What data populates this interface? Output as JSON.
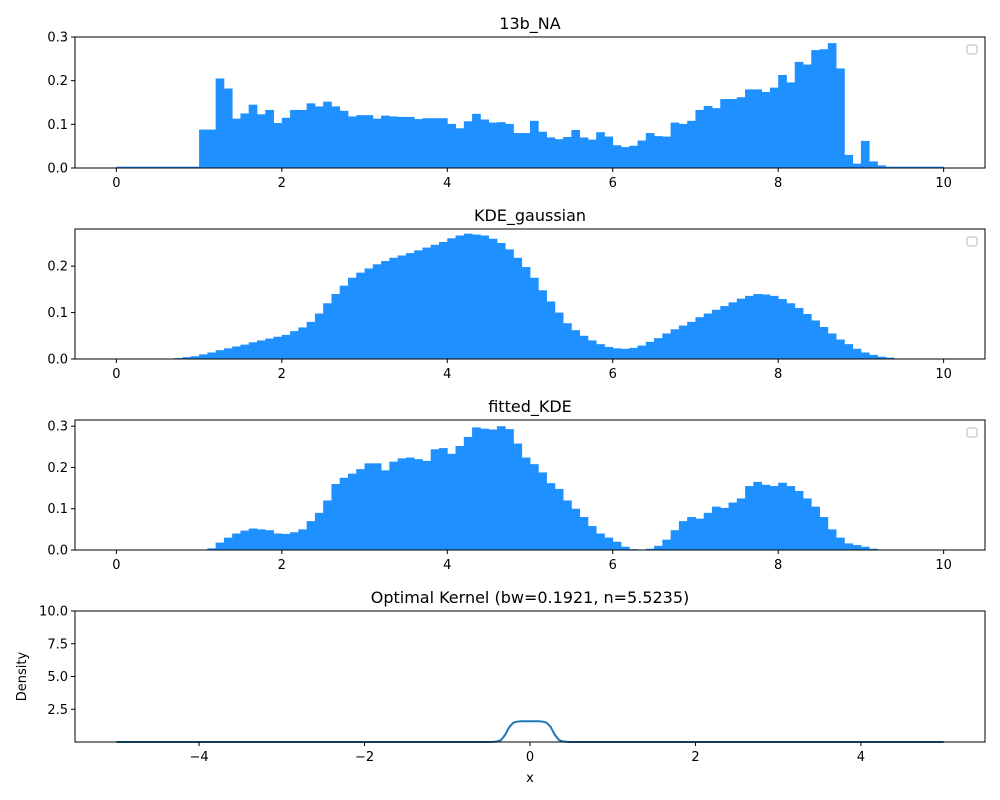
{
  "colors": {
    "bar": "#1e90ff",
    "line": "#1f77b4",
    "axis": "#000000"
  },
  "chart_data": [
    {
      "type": "bar",
      "title": "13b_NA",
      "xlim": [
        -0.5,
        10.5
      ],
      "ylim": [
        0,
        0.3
      ],
      "xticks": [
        "0",
        "2",
        "4",
        "6",
        "8",
        "10"
      ],
      "yticks": [
        "0.0",
        "0.1",
        "0.2",
        "0.3"
      ],
      "bin_start": 0,
      "bin_width": 0.1,
      "legend": "top-right, empty",
      "values": [
        0.003,
        0.003,
        0.003,
        0.003,
        0.003,
        0.003,
        0.003,
        0.003,
        0.003,
        0.003,
        0.088,
        0.088,
        0.205,
        0.182,
        0.113,
        0.125,
        0.145,
        0.123,
        0.133,
        0.103,
        0.115,
        0.133,
        0.133,
        0.148,
        0.141,
        0.152,
        0.141,
        0.131,
        0.118,
        0.121,
        0.121,
        0.113,
        0.12,
        0.118,
        0.117,
        0.117,
        0.112,
        0.114,
        0.114,
        0.114,
        0.101,
        0.091,
        0.107,
        0.124,
        0.111,
        0.104,
        0.105,
        0.101,
        0.08,
        0.08,
        0.108,
        0.083,
        0.07,
        0.066,
        0.071,
        0.087,
        0.07,
        0.065,
        0.082,
        0.072,
        0.052,
        0.048,
        0.051,
        0.063,
        0.08,
        0.073,
        0.072,
        0.104,
        0.101,
        0.108,
        0.133,
        0.142,
        0.137,
        0.158,
        0.158,
        0.162,
        0.18,
        0.18,
        0.174,
        0.184,
        0.213,
        0.196,
        0.243,
        0.237,
        0.27,
        0.272,
        0.286,
        0.228,
        0.03,
        0.01,
        0.062,
        0.015,
        0.006,
        0.003,
        0.003,
        0.003,
        0.003,
        0.003,
        0.003,
        0.003
      ]
    },
    {
      "type": "bar",
      "title": "KDE_gaussian",
      "xlim": [
        -0.5,
        10.5
      ],
      "ylim": [
        0,
        0.28
      ],
      "xticks": [
        "0",
        "2",
        "4",
        "6",
        "8",
        "10"
      ],
      "yticks": [
        "0.0",
        "0.1",
        "0.2"
      ],
      "bin_start": 0,
      "bin_width": 0.1,
      "legend": "top-right, empty",
      "values": [
        0.0,
        0.0,
        0.0,
        0.0,
        0.0,
        0.0,
        0.001,
        0.002,
        0.004,
        0.006,
        0.01,
        0.014,
        0.019,
        0.023,
        0.027,
        0.031,
        0.036,
        0.04,
        0.044,
        0.048,
        0.052,
        0.06,
        0.068,
        0.08,
        0.098,
        0.12,
        0.14,
        0.158,
        0.175,
        0.186,
        0.195,
        0.204,
        0.211,
        0.218,
        0.223,
        0.228,
        0.234,
        0.24,
        0.246,
        0.252,
        0.26,
        0.266,
        0.27,
        0.268,
        0.266,
        0.259,
        0.25,
        0.236,
        0.218,
        0.198,
        0.175,
        0.148,
        0.124,
        0.1,
        0.077,
        0.062,
        0.05,
        0.04,
        0.032,
        0.026,
        0.023,
        0.022,
        0.024,
        0.029,
        0.037,
        0.045,
        0.055,
        0.064,
        0.072,
        0.08,
        0.09,
        0.098,
        0.106,
        0.114,
        0.122,
        0.13,
        0.136,
        0.14,
        0.139,
        0.136,
        0.129,
        0.12,
        0.11,
        0.097,
        0.083,
        0.069,
        0.055,
        0.042,
        0.032,
        0.022,
        0.014,
        0.009,
        0.005,
        0.003,
        0.001,
        0.0,
        0.0,
        0.0,
        0.0,
        0.0
      ]
    },
    {
      "type": "bar",
      "title": "fitted_KDE",
      "xlim": [
        -0.5,
        10.5
      ],
      "ylim": [
        0,
        0.315
      ],
      "xticks": [
        "0",
        "2",
        "4",
        "6",
        "8",
        "10"
      ],
      "yticks": [
        "0.0",
        "0.1",
        "0.2",
        "0.3"
      ],
      "bin_start": 0,
      "bin_width": 0.1,
      "legend": "top-right, empty",
      "values": [
        0.0,
        0.0,
        0.0,
        0.0,
        0.0,
        0.0,
        0.0,
        0.0,
        0.0,
        0.0,
        0.001,
        0.004,
        0.018,
        0.03,
        0.04,
        0.047,
        0.052,
        0.05,
        0.048,
        0.04,
        0.039,
        0.043,
        0.05,
        0.07,
        0.09,
        0.12,
        0.16,
        0.175,
        0.185,
        0.196,
        0.21,
        0.21,
        0.193,
        0.214,
        0.222,
        0.224,
        0.22,
        0.216,
        0.244,
        0.247,
        0.233,
        0.252,
        0.274,
        0.297,
        0.294,
        0.292,
        0.3,
        0.293,
        0.258,
        0.224,
        0.208,
        0.188,
        0.162,
        0.148,
        0.12,
        0.1,
        0.08,
        0.058,
        0.04,
        0.03,
        0.02,
        0.008,
        0.002,
        0.0,
        0.003,
        0.01,
        0.025,
        0.048,
        0.07,
        0.08,
        0.076,
        0.09,
        0.105,
        0.102,
        0.115,
        0.125,
        0.155,
        0.165,
        0.158,
        0.155,
        0.163,
        0.155,
        0.143,
        0.125,
        0.105,
        0.08,
        0.05,
        0.03,
        0.016,
        0.012,
        0.008,
        0.003,
        0.001,
        0.0,
        0.0,
        0.0,
        0.0,
        0.0,
        0.0,
        0.0
      ]
    },
    {
      "type": "line",
      "title": "Optimal Kernel (bw=0.1921, n=5.5235)",
      "xlabel": "x",
      "ylabel": "Density",
      "xlim": [
        -5.5,
        5.5
      ],
      "ylim": [
        0,
        10
      ],
      "xticks": [
        "−4",
        "−2",
        "0",
        "2",
        "4"
      ],
      "yticks": [
        "2.5",
        "5.0",
        "7.5",
        "10.0"
      ],
      "x": [
        -5.0,
        -0.6,
        -0.5,
        -0.45,
        -0.4,
        -0.35,
        -0.3,
        -0.25,
        -0.2,
        -0.15,
        -0.1,
        0.0,
        0.1,
        0.15,
        0.2,
        0.25,
        0.3,
        0.35,
        0.4,
        0.45,
        0.5,
        0.6,
        5.0
      ],
      "y": [
        0.0,
        0.0,
        0.003,
        0.01,
        0.04,
        0.15,
        0.55,
        1.15,
        1.48,
        1.56,
        1.58,
        1.58,
        1.58,
        1.56,
        1.48,
        1.15,
        0.55,
        0.15,
        0.04,
        0.01,
        0.003,
        0.0,
        0.0
      ]
    }
  ]
}
